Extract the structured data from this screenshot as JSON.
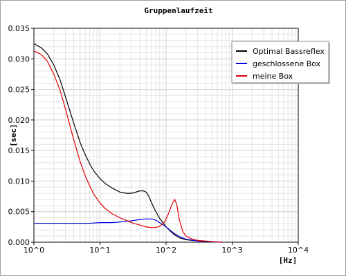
{
  "chart_data": {
    "type": "line",
    "title": "Gruppenlaufzeit",
    "xlabel": "[Hz]",
    "ylabel": "[sec]",
    "x_scale": "log",
    "xlim": [
      1,
      10000
    ],
    "ylim": [
      0,
      0.035
    ],
    "grid": true,
    "legend_position": "top-right",
    "x_ticks": [
      {
        "value": 1,
        "label": "10^0"
      },
      {
        "value": 10,
        "label": "10^1"
      },
      {
        "value": 100,
        "label": "10^2"
      },
      {
        "value": 1000,
        "label": "10^3"
      },
      {
        "value": 10000,
        "label": "10^4"
      }
    ],
    "y_ticks": [
      {
        "value": 0,
        "label": "0.000"
      },
      {
        "value": 0.005,
        "label": "0.005"
      },
      {
        "value": 0.01,
        "label": "0.010"
      },
      {
        "value": 0.015,
        "label": "0.015"
      },
      {
        "value": 0.02,
        "label": "0.020"
      },
      {
        "value": 0.025,
        "label": "0.025"
      },
      {
        "value": 0.03,
        "label": "0.030"
      },
      {
        "value": 0.035,
        "label": "0.035"
      }
    ],
    "series": [
      {
        "name": "Optimal Bassreflex",
        "color": "#000000",
        "points": [
          [
            1,
            0.0325
          ],
          [
            1.3,
            0.0318
          ],
          [
            1.6,
            0.0308
          ],
          [
            2,
            0.029
          ],
          [
            2.5,
            0.0265
          ],
          [
            3,
            0.0238
          ],
          [
            4,
            0.0195
          ],
          [
            5,
            0.0163
          ],
          [
            6,
            0.0143
          ],
          [
            7,
            0.0128
          ],
          [
            8,
            0.0117
          ],
          [
            10,
            0.0104
          ],
          [
            12,
            0.0096
          ],
          [
            15,
            0.0089
          ],
          [
            20,
            0.0082
          ],
          [
            25,
            0.008
          ],
          [
            30,
            0.008
          ],
          [
            35,
            0.0082
          ],
          [
            40,
            0.0084
          ],
          [
            45,
            0.0084
          ],
          [
            50,
            0.0082
          ],
          [
            55,
            0.0075
          ],
          [
            60,
            0.0065
          ],
          [
            70,
            0.005
          ],
          [
            80,
            0.0039
          ],
          [
            100,
            0.0025
          ],
          [
            130,
            0.0013
          ],
          [
            160,
            0.0007
          ],
          [
            200,
            0.0004
          ],
          [
            300,
            0.0002
          ],
          [
            500,
            5e-05
          ],
          [
            700,
            0.0
          ]
        ]
      },
      {
        "name": "geschlossene Box",
        "color": "#0000e0",
        "points": [
          [
            1,
            0.0031
          ],
          [
            3,
            0.0031
          ],
          [
            7,
            0.0031
          ],
          [
            10,
            0.0032
          ],
          [
            15,
            0.0032
          ],
          [
            20,
            0.0033
          ],
          [
            30,
            0.0035
          ],
          [
            40,
            0.0037
          ],
          [
            50,
            0.0038
          ],
          [
            60,
            0.0038
          ],
          [
            70,
            0.0036
          ],
          [
            80,
            0.0032
          ],
          [
            100,
            0.0025
          ],
          [
            130,
            0.0015
          ],
          [
            160,
            0.0009
          ],
          [
            200,
            0.0005
          ],
          [
            300,
            0.0002
          ],
          [
            500,
            5e-05
          ],
          [
            700,
            0.0
          ]
        ]
      },
      {
        "name": "meine Box",
        "color": "#e00000",
        "points": [
          [
            1,
            0.0313
          ],
          [
            1.3,
            0.0307
          ],
          [
            1.6,
            0.0296
          ],
          [
            2,
            0.0275
          ],
          [
            2.5,
            0.0248
          ],
          [
            3,
            0.0218
          ],
          [
            4,
            0.0168
          ],
          [
            5,
            0.0132
          ],
          [
            6,
            0.0108
          ],
          [
            7,
            0.0092
          ],
          [
            8,
            0.0079
          ],
          [
            10,
            0.0064
          ],
          [
            12,
            0.0055
          ],
          [
            15,
            0.0047
          ],
          [
            20,
            0.004
          ],
          [
            30,
            0.0032
          ],
          [
            40,
            0.0028
          ],
          [
            50,
            0.0025
          ],
          [
            60,
            0.0024
          ],
          [
            70,
            0.0024
          ],
          [
            80,
            0.0026
          ],
          [
            95,
            0.0033
          ],
          [
            110,
            0.0048
          ],
          [
            125,
            0.0064
          ],
          [
            135,
            0.007
          ],
          [
            145,
            0.0062
          ],
          [
            160,
            0.0035
          ],
          [
            180,
            0.0017
          ],
          [
            200,
            0.001
          ],
          [
            250,
            0.0005
          ],
          [
            300,
            0.0003
          ],
          [
            500,
            0.0001
          ],
          [
            700,
            0.0
          ]
        ]
      }
    ]
  }
}
